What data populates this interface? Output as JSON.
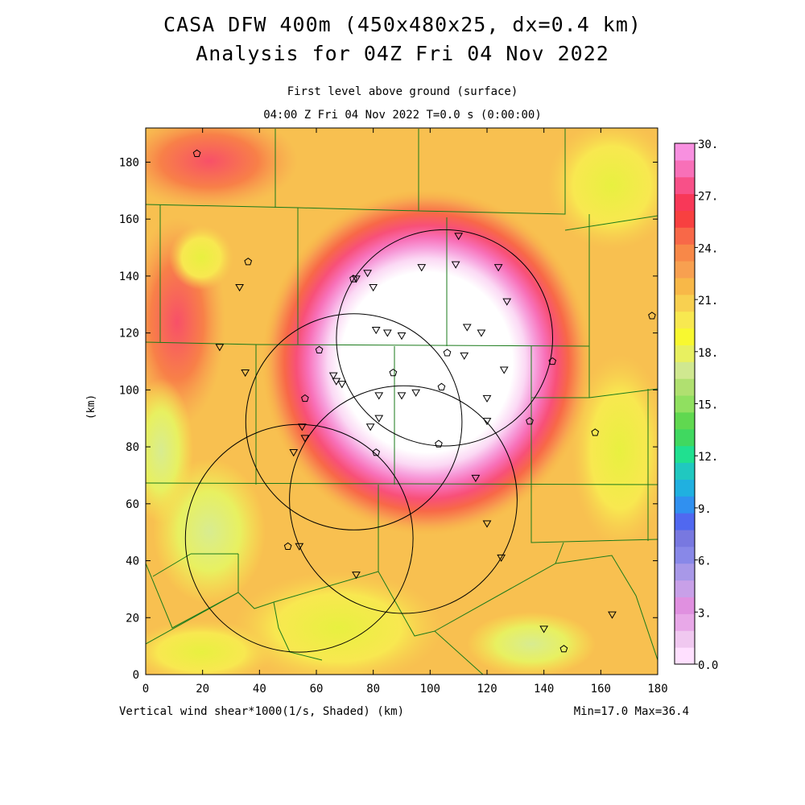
{
  "header": {
    "title_line1": "CASA DFW 400m (450x480x25, dx=0.4 km)",
    "title_line2": "Analysis for 04Z Fri 04 Nov 2022",
    "subtitle_level": "First level above ground (surface)",
    "subtitle_time": "04:00 Z Fri 04 Nov 2022    T=0.0 s (0:00:00)"
  },
  "footer": {
    "field_label": "Vertical wind shear*1000(1/s, Shaded)  (km)",
    "minmax": "Min=17.0 Max=36.4"
  },
  "axes": {
    "y_label": "(km)",
    "x_ticks": [
      "0",
      "20",
      "40",
      "60",
      "80",
      "100",
      "120",
      "140",
      "160",
      "180"
    ],
    "y_ticks": [
      "0",
      "20",
      "40",
      "60",
      "80",
      "100",
      "120",
      "140",
      "160",
      "180"
    ],
    "x_range": [
      0,
      180
    ],
    "y_range": [
      0,
      192
    ]
  },
  "colorbar": {
    "labels": [
      "30.",
      "27.",
      "24.",
      "21.",
      "18.",
      "15.",
      "12.",
      "9.",
      "6.",
      "3.",
      "0.0"
    ],
    "colors": [
      "#ffe0ff",
      "#f0c8f0",
      "#e8a8e8",
      "#e090e0",
      "#c8a0e8",
      "#a898e8",
      "#8888e8",
      "#7878e0",
      "#5068f0",
      "#3090f0",
      "#20b0e0",
      "#20c8c0",
      "#20e090",
      "#40d860",
      "#60d850",
      "#90e060",
      "#b0e070",
      "#d0e890",
      "#e8f060",
      "#f8f830",
      "#f8e850",
      "#f8d050",
      "#f8b848",
      "#f8a050",
      "#f88848",
      "#f86848",
      "#f84040",
      "#f83858",
      "#f85088",
      "#f870b8",
      "#f890e0"
    ]
  },
  "chart_data": {
    "type": "heatmap",
    "field": "Vertical wind shear*1000 (1/s)",
    "x_unit": "km",
    "y_unit": "km",
    "xlim": [
      0,
      180
    ],
    "ylim": [
      0,
      192
    ],
    "value_range": [
      17.0,
      36.4
    ],
    "colorbar_range": [
      0.0,
      30.0
    ],
    "radar_rings": [
      {
        "center": [
          112,
          118
        ],
        "radius": 38
      },
      {
        "center": [
          80,
          89
        ],
        "radius": 38
      },
      {
        "center": [
          99,
          62
        ],
        "radius": 40
      },
      {
        "center": [
          50,
          48
        ],
        "radius": 40
      }
    ],
    "stations_triangle": [
      [
        110,
        154
      ],
      [
        109,
        144
      ],
      [
        124,
        143
      ],
      [
        97,
        143
      ],
      [
        78,
        141
      ],
      [
        74,
        139
      ],
      [
        80,
        136
      ],
      [
        127,
        131
      ],
      [
        81,
        121
      ],
      [
        85,
        120
      ],
      [
        90,
        119
      ],
      [
        113,
        122
      ],
      [
        118,
        120
      ],
      [
        112,
        112
      ],
      [
        126,
        107
      ],
      [
        66,
        105
      ],
      [
        69,
        102
      ],
      [
        67,
        103
      ],
      [
        82,
        98
      ],
      [
        90,
        98
      ],
      [
        95,
        99
      ],
      [
        120,
        97
      ],
      [
        120,
        89
      ],
      [
        82,
        90
      ],
      [
        79,
        87
      ],
      [
        55,
        87
      ],
      [
        56,
        83
      ],
      [
        52,
        78
      ],
      [
        116,
        69
      ],
      [
        120,
        53
      ],
      [
        125,
        41
      ],
      [
        74,
        35
      ],
      [
        54,
        45
      ],
      [
        35,
        106
      ],
      [
        33,
        136
      ],
      [
        26,
        115
      ],
      [
        140,
        16
      ],
      [
        164,
        21
      ]
    ],
    "stations_pentagon": [
      [
        18,
        183
      ],
      [
        36,
        145
      ],
      [
        73,
        139
      ],
      [
        61,
        114
      ],
      [
        56,
        97
      ],
      [
        87,
        106
      ],
      [
        106,
        113
      ],
      [
        104,
        101
      ],
      [
        103,
        81
      ],
      [
        81,
        78
      ],
      [
        135,
        89
      ],
      [
        143,
        110
      ],
      [
        158,
        85
      ],
      [
        178,
        126
      ],
      [
        50,
        45
      ],
      [
        147,
        9
      ]
    ]
  }
}
